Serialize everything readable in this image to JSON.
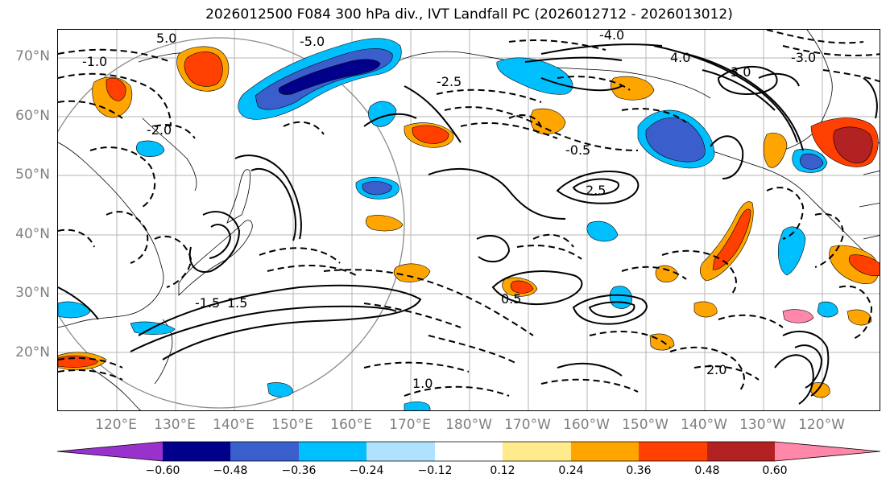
{
  "title": "2026012500 F084 300 hPa div., IVT Landfall PC (2026012712 - 2026013012)",
  "lat_labels": [
    "70°N",
    "60°N",
    "50°N",
    "40°N",
    "30°N",
    "20°N"
  ],
  "lon_labels": [
    "120°E",
    "130°E",
    "140°E",
    "150°E",
    "160°E",
    "170°E",
    "180°W",
    "170°W",
    "160°W",
    "150°W",
    "140°W",
    "130°W",
    "120°W"
  ],
  "colorbar": {
    "ticks": [
      "−0.60",
      "−0.48",
      "−0.36",
      "−0.24",
      "−0.12",
      "0.12",
      "0.24",
      "0.36",
      "0.48",
      "0.60"
    ],
    "colors": [
      "#9932cc",
      "#00008b",
      "#3a5fcd",
      "#00bfff",
      "#b0e2ff",
      "#ffffff",
      "#ffeb8c",
      "#ffa500",
      "#ff4000",
      "#b22222",
      "#ff88aa"
    ]
  },
  "contour_labels": [
    "5.0",
    "-5.0",
    "-1.0",
    "-1.5",
    "-2.0",
    "-0.5",
    "0.5",
    "1.0",
    "1.5",
    "2.0",
    "2.5",
    "4.0",
    "3.0",
    "-4.0",
    "-3.0",
    "-2.5"
  ]
}
